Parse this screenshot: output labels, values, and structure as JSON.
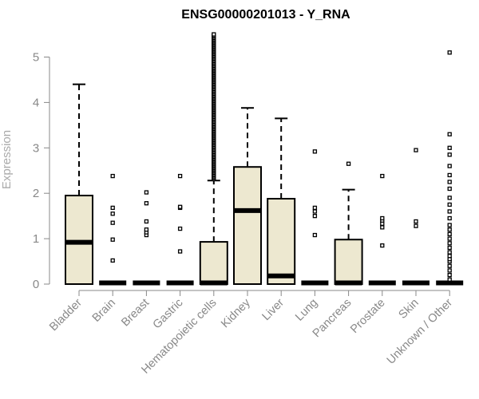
{
  "chart_data": {
    "type": "boxplot",
    "title": "ENSG00000201013 - Y_RNA",
    "xlabel": "",
    "ylabel": "Expression",
    "ylim": [
      0,
      5.5
    ],
    "yticks": [
      0,
      1,
      2,
      3,
      4,
      5
    ],
    "grid": false,
    "box_fill": "#ede8d0",
    "categories": [
      "Bladder",
      "Brain",
      "Breast",
      "Gastric",
      "Hematopoietic cells",
      "Kidney",
      "Liver",
      "Lung",
      "Pancreas",
      "Prostate",
      "Skin",
      "Unknown / Other"
    ],
    "boxes": [
      {
        "category": "Bladder",
        "whisker_low": 0,
        "q1": 0,
        "median": 0.92,
        "q3": 1.95,
        "whisker_high": 4.4,
        "outliers": []
      },
      {
        "category": "Brain",
        "whisker_low": 0,
        "q1": 0,
        "median": 0,
        "q3": 0,
        "whisker_high": 0,
        "outliers": [
          0.52,
          0.98,
          1.35,
          1.55,
          1.68,
          2.38
        ]
      },
      {
        "category": "Breast",
        "whisker_low": 0,
        "q1": 0,
        "median": 0,
        "q3": 0,
        "whisker_high": 0,
        "outliers": [
          1.08,
          1.14,
          1.2,
          1.38,
          1.78,
          2.02
        ]
      },
      {
        "category": "Gastric",
        "whisker_low": 0,
        "q1": 0,
        "median": 0,
        "q3": 0,
        "whisker_high": 0,
        "outliers": [
          0.72,
          1.22,
          1.68,
          1.7,
          2.38
        ]
      },
      {
        "category": "Hematopoietic cells",
        "whisker_low": 0,
        "q1": 0,
        "median": 0,
        "q3": 0.93,
        "whisker_high": 2.28,
        "outliers_range": [
          2.32,
          5.5
        ],
        "outliers_count": 120
      },
      {
        "category": "Kidney",
        "whisker_low": 0,
        "q1": 0,
        "median": 1.62,
        "q3": 2.58,
        "whisker_high": 3.88,
        "outliers": []
      },
      {
        "category": "Liver",
        "whisker_low": 0,
        "q1": 0,
        "median": 0.18,
        "q3": 1.88,
        "whisker_high": 3.65,
        "outliers": []
      },
      {
        "category": "Lung",
        "whisker_low": 0,
        "q1": 0,
        "median": 0,
        "q3": 0,
        "whisker_high": 0,
        "outliers": [
          1.08,
          1.5,
          1.6,
          1.68,
          2.92
        ]
      },
      {
        "category": "Pancreas",
        "whisker_low": 0,
        "q1": 0,
        "median": 0,
        "q3": 0.98,
        "whisker_high": 2.08,
        "outliers": [
          2.65
        ]
      },
      {
        "category": "Prostate",
        "whisker_low": 0,
        "q1": 0,
        "median": 0,
        "q3": 0,
        "whisker_high": 0,
        "outliers": [
          0.85,
          1.25,
          1.33,
          1.4,
          1.45,
          2.38
        ]
      },
      {
        "category": "Skin",
        "whisker_low": 0,
        "q1": 0,
        "median": 0,
        "q3": 0,
        "whisker_high": 0,
        "outliers": [
          1.28,
          1.38,
          2.95
        ]
      },
      {
        "category": "Unknown / Other",
        "whisker_low": 0,
        "q1": 0,
        "median": 0,
        "q3": 0,
        "whisker_high": 0,
        "outliers": [
          0.1,
          0.2,
          0.3,
          0.4,
          0.5,
          0.55,
          0.62,
          0.7,
          0.8,
          0.9,
          1.0,
          1.1,
          1.2,
          1.3,
          1.45,
          1.6,
          1.75,
          1.9,
          2.1,
          2.25,
          2.4,
          2.6,
          2.85,
          3.0,
          3.3,
          5.1
        ]
      }
    ]
  }
}
